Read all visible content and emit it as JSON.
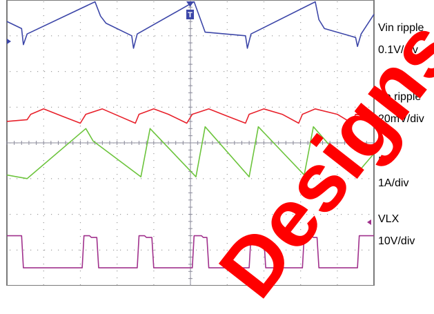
{
  "chart_data": {
    "type": "line",
    "title": "",
    "xlabel": "",
    "ylabel": "",
    "grid": true,
    "divisions": {
      "x": 10,
      "y": 8
    },
    "trigger_marker": "T",
    "series": [
      {
        "name": "Vin ripple",
        "scale": "0.1V/div",
        "color": "#3c46a8",
        "x": [
          0,
          0.4,
          0.45,
          0.55,
          2.4,
          2.55,
          2.7,
          3.4,
          3.45,
          3.55,
          5.1,
          5.4,
          6.5,
          6.55,
          6.65,
          8.4,
          8.5,
          8.65,
          9.5,
          9.55,
          9.65,
          10
        ],
        "y": [
          3.4,
          3.2,
          2.75,
          3.05,
          3.95,
          3.55,
          3.35,
          3.0,
          2.65,
          3.05,
          3.95,
          3.1,
          3.0,
          2.65,
          3.05,
          3.95,
          3.45,
          3.2,
          2.95,
          2.7,
          3.05,
          3.6
        ]
      },
      {
        "name": "Vo ripple",
        "scale": "20mV/div",
        "color": "#e8202a",
        "x": [
          0,
          0.55,
          0.65,
          1.0,
          1.5,
          2.0,
          2.15,
          2.6,
          3.05,
          3.5,
          3.6,
          4.0,
          4.4,
          4.9,
          5.05,
          5.5,
          6.0,
          6.5,
          6.6,
          7.0,
          7.5,
          7.95,
          8.05,
          8.4,
          9.0,
          9.4,
          9.5,
          10
        ],
        "y": [
          0.6,
          0.65,
          0.8,
          0.95,
          0.75,
          0.55,
          0.8,
          0.95,
          0.75,
          0.55,
          0.8,
          0.95,
          0.8,
          0.55,
          0.8,
          0.95,
          0.75,
          0.55,
          0.8,
          0.95,
          0.8,
          0.55,
          0.8,
          0.95,
          0.8,
          0.55,
          0.8,
          0.7
        ]
      },
      {
        "name": "IL",
        "scale": "1A/div",
        "color": "#6cc43c",
        "x": [
          0,
          0.55,
          2.15,
          2.35,
          3.65,
          3.9,
          5.15,
          5.4,
          6.6,
          6.85,
          8.1,
          8.35,
          9.5,
          10
        ],
        "y": [
          -0.9,
          -1.0,
          0.4,
          0.05,
          -0.95,
          0.4,
          -0.95,
          0.45,
          -0.95,
          0.45,
          -0.9,
          0.45,
          -0.9,
          -0.3
        ]
      },
      {
        "name": "VLX",
        "scale": "10V/div",
        "color": "#a0308c",
        "x": [
          0,
          0.05,
          0.1,
          0.4,
          0.45,
          2.05,
          2.1,
          2.25,
          2.3,
          2.45,
          2.5,
          3.55,
          3.6,
          3.75,
          3.8,
          3.95,
          4.0,
          5.05,
          5.1,
          5.3,
          5.35,
          5.45,
          5.5,
          6.6,
          6.65,
          6.85,
          6.9,
          7.0,
          7.05,
          8.05,
          8.1,
          8.3,
          8.35,
          8.45,
          8.5,
          9.55,
          9.6,
          10
        ],
        "y": [
          -2.6,
          -2.6,
          -2.6,
          -2.6,
          -3.5,
          -3.5,
          -2.6,
          -2.6,
          -2.65,
          -2.65,
          -3.5,
          -3.5,
          -2.6,
          -2.6,
          -2.65,
          -2.65,
          -3.5,
          -3.5,
          -2.6,
          -2.6,
          -2.65,
          -2.65,
          -3.5,
          -3.5,
          -2.6,
          -2.6,
          -2.65,
          -2.65,
          -3.5,
          -3.5,
          -2.6,
          -2.6,
          -2.65,
          -2.65,
          -3.5,
          -3.5,
          -2.6,
          -2.6
        ]
      }
    ]
  },
  "labels": [
    {
      "name": "Vin ripple",
      "scale": "0.1V/div"
    },
    {
      "name": "Vo ripple",
      "scale": "20mV/div"
    },
    {
      "name": "IL",
      "scale": "1A/div"
    },
    {
      "name": "VLX",
      "scale": "10V/div"
    }
  ],
  "watermark": "Designs"
}
